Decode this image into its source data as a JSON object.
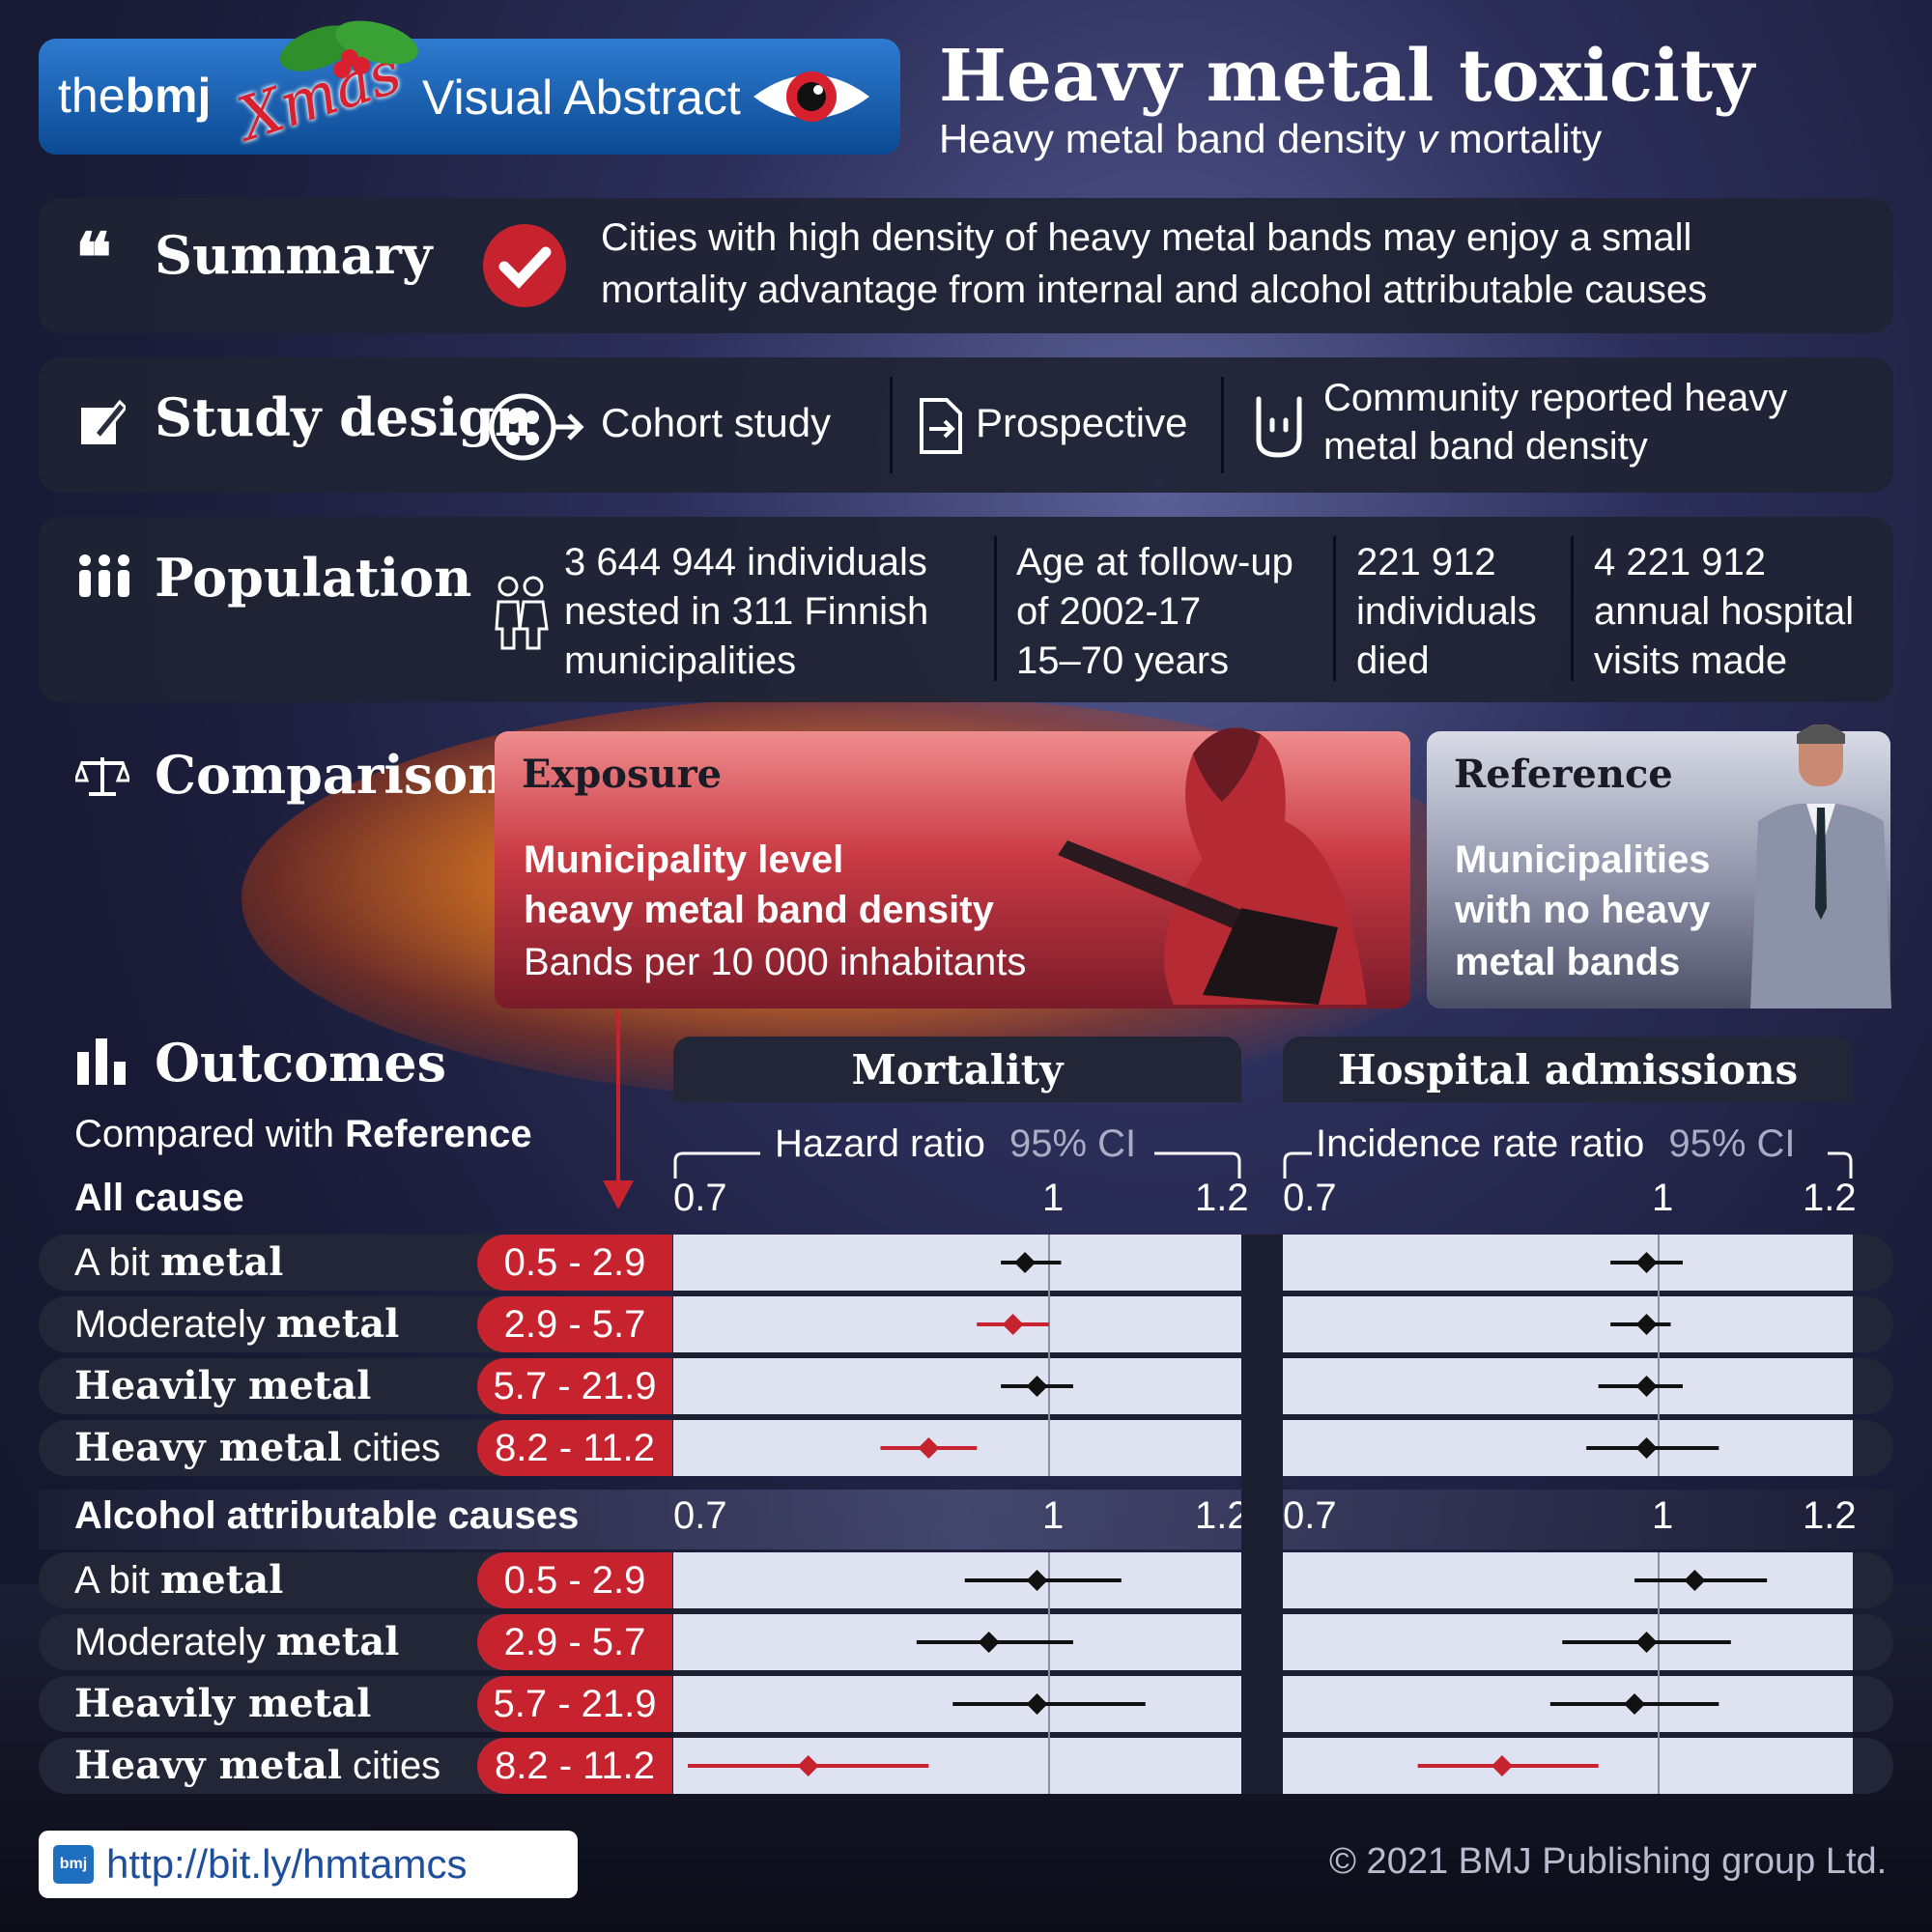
{
  "header": {
    "brand_the": "the",
    "brand_bmj": "bmj",
    "brand_xmas": "Xmas",
    "brand_visual": "Visual Abstract",
    "title": "Heavy metal toxicity",
    "subtitle_pre": "Heavy metal band density ",
    "subtitle_v": "v",
    "subtitle_post": " mortality"
  },
  "summary": {
    "heading": "Summary",
    "line1": "Cities with high density of heavy metal bands may enjoy a small",
    "line2": "mortality advantage from internal and alcohol attributable causes"
  },
  "study_design": {
    "heading": "Study design",
    "item1": "Cohort study",
    "item2": "Prospective",
    "item3_line1": "Community reported heavy",
    "item3_line2": "metal band density"
  },
  "population": {
    "heading": "Population",
    "c1_line1": "3 644 944 individuals",
    "c1_line2": "nested in 311 Finnish",
    "c1_line3": "municipalities",
    "c2_line1": "Age at follow-up",
    "c2_line2": "of 2002-17",
    "c2_line3": "15–70 years",
    "c3_line1": "221 912",
    "c3_line2": "individuals",
    "c3_line3": "died",
    "c4_line1": "4 221 912",
    "c4_line2": "annual hospital",
    "c4_line3": "visits made"
  },
  "comparison": {
    "heading": "Comparison",
    "exposure_title": "Exposure",
    "exposure_line1": "Municipality level",
    "exposure_line2": "heavy metal band density",
    "exposure_line3": "Bands per 10 000 inhabitants",
    "reference_title": "Reference",
    "reference_line1": "Municipalities",
    "reference_line2": "with no heavy",
    "reference_line3": "metal bands"
  },
  "outcomes": {
    "heading": "Outcomes",
    "compared_pre": "Compared with ",
    "compared_ref": "Reference",
    "mortality_title": "Mortality",
    "hospital_title": "Hospital admissions",
    "hr_label": "Hazard ratio",
    "hr_ci": "95% CI",
    "irr_label": "Incidence rate ratio",
    "irr_ci": "95% CI",
    "ticks": [
      "0.7",
      "1",
      "1.2"
    ]
  },
  "colors": {
    "highlight": "#c7232f",
    "point": "#111111",
    "plot_bg": "#dfe2f0",
    "panel": "#232637"
  },
  "chart_data": [
    {
      "type": "forest",
      "title": "Mortality",
      "xlabel": "Hazard ratio 95% CI",
      "xlim": [
        0.7,
        1.2
      ],
      "reference_line": 1,
      "groups": [
        {
          "name": "All cause",
          "rows": [
            {
              "label_pre": "A bit ",
              "label_metal": "metal",
              "label_post": "",
              "range": "0.5 - 2.9",
              "estimate": 0.98,
              "lower": 0.96,
              "upper": 1.01,
              "highlight": false
            },
            {
              "label_pre": "Moderately ",
              "label_metal": "metal",
              "label_post": "",
              "range": "2.9 - 5.7",
              "estimate": 0.97,
              "lower": 0.94,
              "upper": 1.0,
              "highlight": true
            },
            {
              "label_pre": "",
              "label_metal": "Heavily metal",
              "label_post": "",
              "range": "5.7 - 21.9",
              "estimate": 0.99,
              "lower": 0.96,
              "upper": 1.02,
              "highlight": false
            },
            {
              "label_pre": "",
              "label_metal": "Heavy metal",
              "label_post": " cities",
              "range": "8.2 - 11.2",
              "estimate": 0.9,
              "lower": 0.86,
              "upper": 0.94,
              "highlight": true
            }
          ]
        },
        {
          "name": "Alcohol attributable causes",
          "rows": [
            {
              "label_pre": "A bit ",
              "label_metal": "metal",
              "label_post": "",
              "range": "0.5 - 2.9",
              "estimate": 0.99,
              "lower": 0.93,
              "upper": 1.06,
              "highlight": false
            },
            {
              "label_pre": "Moderately ",
              "label_metal": "metal",
              "label_post": "",
              "range": "2.9 - 5.7",
              "estimate": 0.95,
              "lower": 0.89,
              "upper": 1.02,
              "highlight": false
            },
            {
              "label_pre": "",
              "label_metal": "Heavily metal",
              "label_post": "",
              "range": "5.7 - 21.9",
              "estimate": 0.99,
              "lower": 0.92,
              "upper": 1.08,
              "highlight": false
            },
            {
              "label_pre": "",
              "label_metal": "Heavy metal",
              "label_post": " cities",
              "range": "8.2 - 11.2",
              "estimate": 0.8,
              "lower": 0.7,
              "upper": 0.9,
              "highlight": true
            }
          ]
        }
      ]
    },
    {
      "type": "forest",
      "title": "Hospital admissions",
      "xlabel": "Incidence rate ratio 95% CI",
      "xlim": [
        0.7,
        1.2
      ],
      "reference_line": 1,
      "groups": [
        {
          "name": "All cause",
          "rows": [
            {
              "range": "0.5 - 2.9",
              "estimate": 0.99,
              "lower": 0.96,
              "upper": 1.02,
              "highlight": false
            },
            {
              "range": "2.9 - 5.7",
              "estimate": 0.99,
              "lower": 0.96,
              "upper": 1.01,
              "highlight": false
            },
            {
              "range": "5.7 - 21.9",
              "estimate": 0.99,
              "lower": 0.95,
              "upper": 1.02,
              "highlight": false
            },
            {
              "range": "8.2 - 11.2",
              "estimate": 0.99,
              "lower": 0.94,
              "upper": 1.05,
              "highlight": false
            }
          ]
        },
        {
          "name": "Alcohol attributable causes",
          "rows": [
            {
              "range": "0.5 - 2.9",
              "estimate": 1.03,
              "lower": 0.98,
              "upper": 1.09,
              "highlight": false
            },
            {
              "range": "2.9 - 5.7",
              "estimate": 0.99,
              "lower": 0.92,
              "upper": 1.06,
              "highlight": false
            },
            {
              "range": "5.7 - 21.9",
              "estimate": 0.98,
              "lower": 0.91,
              "upper": 1.05,
              "highlight": false
            },
            {
              "range": "8.2 - 11.2",
              "estimate": 0.87,
              "lower": 0.8,
              "upper": 0.95,
              "highlight": true
            }
          ]
        }
      ]
    }
  ],
  "footer": {
    "link_icon": "bmj",
    "link": "http://bit.ly/hmtamcs",
    "copyright": "© 2021 BMJ Publishing group Ltd."
  }
}
